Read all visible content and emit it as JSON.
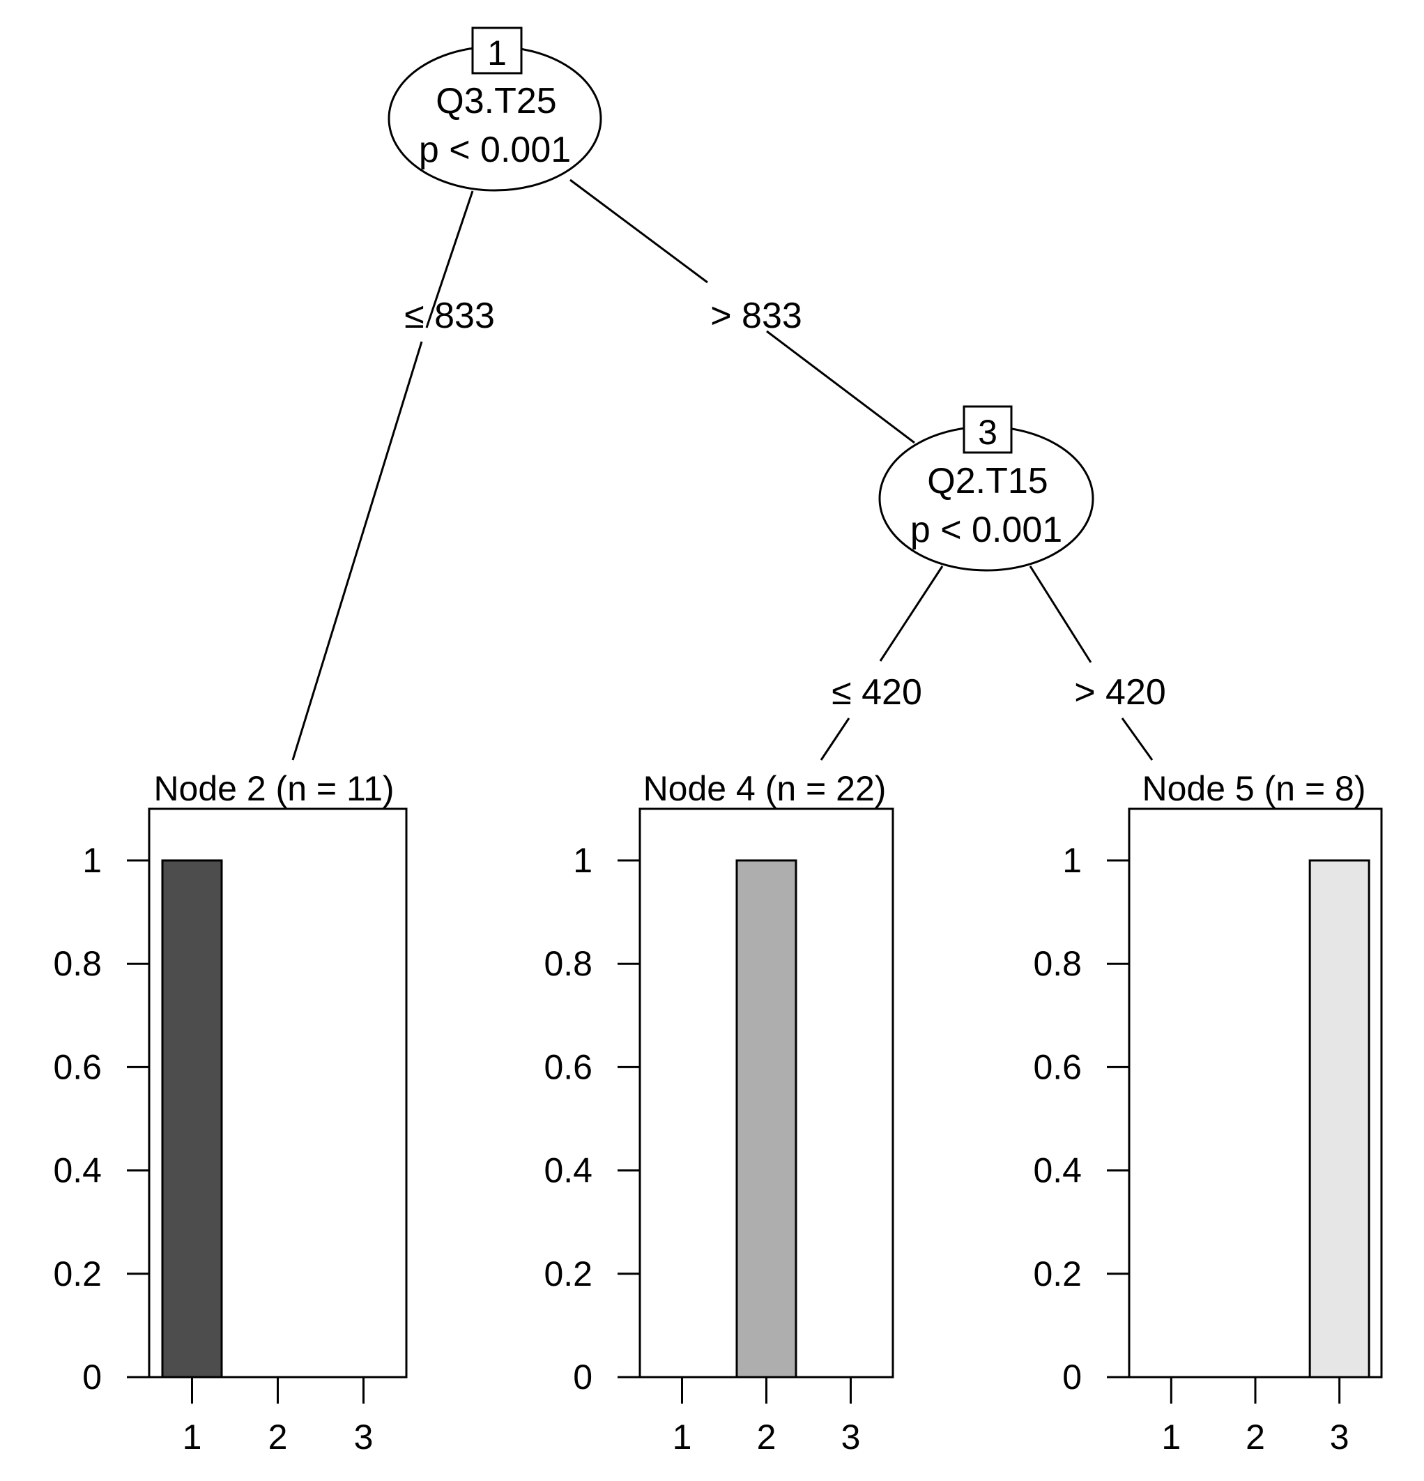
{
  "inner_nodes": [
    {
      "id": "1",
      "variable": "Q3.T25",
      "pvalue": "p < 0.001"
    },
    {
      "id": "3",
      "variable": "Q2.T15",
      "pvalue": "p < 0.001"
    }
  ],
  "edges": [
    {
      "from": "1",
      "to": "2",
      "label": "≤ 833"
    },
    {
      "from": "1",
      "to": "3",
      "label": "> 833"
    },
    {
      "from": "3",
      "to": "4",
      "label": "≤ 420"
    },
    {
      "from": "3",
      "to": "5",
      "label": "> 420"
    }
  ],
  "chart_data": [
    {
      "type": "bar",
      "title": "Node 2 (n = 11)",
      "categories": [
        "1",
        "2",
        "3"
      ],
      "values": [
        1,
        0,
        0
      ],
      "ylim": [
        0,
        1
      ],
      "yticks": [
        "0",
        "0.2",
        "0.4",
        "0.6",
        "0.8",
        "1"
      ],
      "colors": [
        "#4d4d4d",
        "#aeaeae",
        "#e6e6e6"
      ]
    },
    {
      "type": "bar",
      "title": "Node 4 (n = 22)",
      "categories": [
        "1",
        "2",
        "3"
      ],
      "values": [
        0,
        1,
        0
      ],
      "ylim": [
        0,
        1
      ],
      "yticks": [
        "0",
        "0.2",
        "0.4",
        "0.6",
        "0.8",
        "1"
      ],
      "colors": [
        "#4d4d4d",
        "#aeaeae",
        "#e6e6e6"
      ]
    },
    {
      "type": "bar",
      "title": "Node 5 (n = 8)",
      "categories": [
        "1",
        "2",
        "3"
      ],
      "values": [
        0,
        0,
        1
      ],
      "ylim": [
        0,
        1
      ],
      "yticks": [
        "0",
        "0.2",
        "0.4",
        "0.6",
        "0.8",
        "1"
      ],
      "colors": [
        "#4d4d4d",
        "#aeaeae",
        "#e6e6e6"
      ]
    }
  ]
}
